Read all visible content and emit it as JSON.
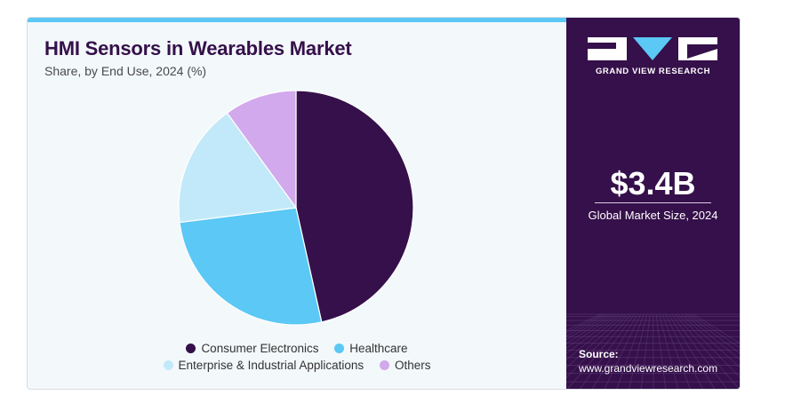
{
  "header": {
    "title": "HMI Sensors in Wearables Market",
    "subtitle": "Share, by End Use, 2024 (%)"
  },
  "chart_data": {
    "type": "pie",
    "title": "HMI Sensors in Wearables Market",
    "subtitle": "Share, by End Use, 2024 (%)",
    "categories": [
      "Consumer Electronics",
      "Healthcare",
      "Enterprise & Industrial Applications",
      "Others"
    ],
    "values": [
      46.5,
      26.5,
      17.0,
      10.0
    ],
    "colors": [
      "#35104a",
      "#5bc8f5",
      "#c2e9f9",
      "#d2a9ec"
    ],
    "start_angle_deg": 0,
    "direction": "clockwise",
    "legend_position": "bottom"
  },
  "legend": {
    "rows": [
      [
        {
          "label": "Consumer Electronics",
          "color": "#35104a"
        },
        {
          "label": "Healthcare",
          "color": "#5bc8f5"
        }
      ],
      [
        {
          "label": "Enterprise & Industrial Applications",
          "color": "#c2e9f9"
        },
        {
          "label": "Others",
          "color": "#d2a9ec"
        }
      ]
    ]
  },
  "sidebar": {
    "brand_name": "GRAND VIEW RESEARCH",
    "market_size_value": "$3.4B",
    "market_size_label": "Global Market Size, 2024",
    "source_label": "Source:",
    "source_url": "www.grandviewresearch.com",
    "background_color": "#35104a"
  },
  "colors": {
    "accent": "#5bc8f5",
    "brand": "#35104a",
    "panel_background": "#f3f8fb"
  }
}
